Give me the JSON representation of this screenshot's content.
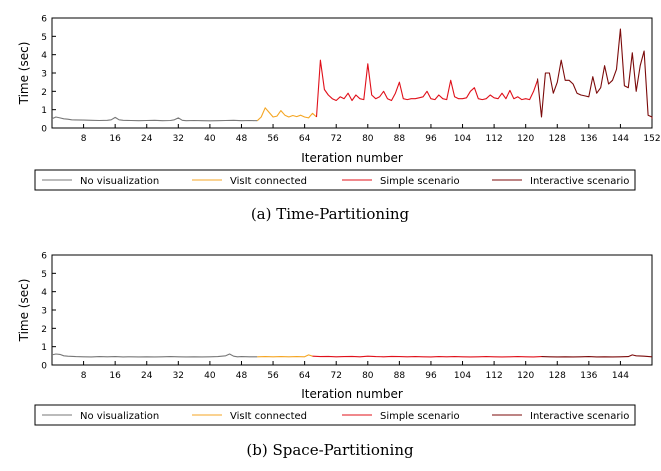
{
  "chart_data": [
    {
      "type": "line",
      "caption": "(a)  Time-Partitioning",
      "ylabel": "Time (sec)",
      "xlabel": "Iteration number",
      "xlim": [
        0,
        152
      ],
      "ylim": [
        0,
        6
      ],
      "xticks": [
        "8",
        "16",
        "24",
        "32",
        "40",
        "48",
        "56",
        "64",
        "72",
        "80",
        "88",
        "96",
        "104",
        "112",
        "120",
        "128",
        "136",
        "144",
        "152"
      ],
      "yticks": [
        "0",
        "1",
        "2",
        "3",
        "4",
        "5",
        "6"
      ],
      "legend": [
        "No visualization",
        "VisIt connected",
        "Simple scenario",
        "Interactive scenario"
      ],
      "series": [
        {
          "name": "No visualization",
          "color": "#777777",
          "x": [
            0,
            1,
            2,
            3,
            4,
            5,
            6,
            8,
            10,
            12,
            14,
            15,
            16,
            17,
            18,
            20,
            22,
            24,
            26,
            28,
            30,
            31,
            32,
            33,
            34,
            36,
            38,
            40,
            42,
            44,
            46,
            48,
            50,
            52
          ],
          "y": [
            0.5,
            0.6,
            0.55,
            0.5,
            0.48,
            0.45,
            0.44,
            0.43,
            0.42,
            0.41,
            0.42,
            0.45,
            0.58,
            0.45,
            0.42,
            0.41,
            0.4,
            0.41,
            0.42,
            0.4,
            0.41,
            0.45,
            0.55,
            0.42,
            0.4,
            0.41,
            0.4,
            0.39,
            0.4,
            0.41,
            0.42,
            0.4,
            0.41,
            0.4
          ]
        },
        {
          "name": "VisIt connected",
          "color": "#f5a623",
          "x": [
            52,
            53,
            54,
            55,
            56,
            57,
            58,
            59,
            60,
            61,
            62,
            63,
            64,
            65,
            66,
            67
          ],
          "y": [
            0.4,
            0.6,
            1.1,
            0.85,
            0.6,
            0.65,
            0.95,
            0.7,
            0.6,
            0.68,
            0.62,
            0.7,
            0.6,
            0.55,
            0.8,
            0.6
          ]
        },
        {
          "name": "Simple scenario",
          "color": "#e0101a",
          "x": [
            67,
            68,
            69,
            70,
            71,
            72,
            73,
            74,
            75,
            76,
            77,
            78,
            79,
            80,
            81,
            82,
            83,
            84,
            85,
            86,
            87,
            88,
            89,
            90,
            91,
            92,
            93,
            94,
            95,
            96,
            97,
            98,
            99,
            100,
            101,
            102,
            103,
            104,
            105,
            106,
            107,
            108,
            109,
            110,
            111,
            112,
            113,
            114,
            115,
            116,
            117,
            118,
            119,
            120,
            121,
            122,
            123
          ],
          "y": [
            0.6,
            3.7,
            2.1,
            1.8,
            1.6,
            1.5,
            1.7,
            1.6,
            1.9,
            1.5,
            1.8,
            1.6,
            1.55,
            3.5,
            1.8,
            1.6,
            1.7,
            2.0,
            1.6,
            1.5,
            1.9,
            2.5,
            1.6,
            1.55,
            1.6,
            1.6,
            1.65,
            1.7,
            2.0,
            1.6,
            1.55,
            1.8,
            1.6,
            1.55,
            2.6,
            1.7,
            1.6,
            1.6,
            1.65,
            2.0,
            2.2,
            1.6,
            1.55,
            1.6,
            1.8,
            1.65,
            1.6,
            1.9,
            1.6,
            2.05,
            1.6,
            1.7,
            1.55,
            1.6,
            1.55,
            2.0,
            2.6
          ]
        },
        {
          "name": "Interactive scenario",
          "color": "#7b0a0a",
          "x": [
            123,
            124,
            125,
            126,
            127,
            128,
            129,
            130,
            131,
            132,
            133,
            134,
            135,
            136,
            137,
            138,
            139,
            140,
            141,
            142,
            143,
            144,
            145,
            146,
            147,
            148,
            149,
            150,
            151,
            152,
            153,
            154
          ],
          "y": [
            2.7,
            0.6,
            3.0,
            3.0,
            1.9,
            2.5,
            3.7,
            2.6,
            2.6,
            2.4,
            1.9,
            1.8,
            1.75,
            1.7,
            2.8,
            1.9,
            2.2,
            3.4,
            2.4,
            2.6,
            3.2,
            5.4,
            2.3,
            2.2,
            4.1,
            2.0,
            3.4,
            4.2,
            0.7,
            0.6,
            0.55,
            0.5
          ]
        }
      ]
    },
    {
      "type": "line",
      "caption": "(b)  Space-Partitioning",
      "ylabel": "Time (sec)",
      "xlabel": "Iteration number",
      "xlim": [
        0,
        152
      ],
      "ylim": [
        0,
        6
      ],
      "xticks": [
        "8",
        "16",
        "24",
        "32",
        "40",
        "48",
        "56",
        "64",
        "72",
        "80",
        "88",
        "96",
        "104",
        "112",
        "120",
        "128",
        "136",
        "144"
      ],
      "yticks": [
        "0",
        "1",
        "2",
        "3",
        "4",
        "5",
        "6"
      ],
      "legend": [
        "No visualization",
        "VisIt connected",
        "Simple scenario",
        "Interactive scenario"
      ],
      "series": [
        {
          "name": "No visualization",
          "color": "#777777",
          "x": [
            0,
            1,
            2,
            3,
            4,
            6,
            8,
            10,
            12,
            14,
            16,
            18,
            20,
            22,
            24,
            26,
            28,
            30,
            32,
            34,
            36,
            38,
            40,
            42,
            44,
            45,
            46,
            47,
            48,
            50,
            52
          ],
          "y": [
            0.55,
            0.6,
            0.58,
            0.5,
            0.48,
            0.46,
            0.45,
            0.44,
            0.46,
            0.45,
            0.46,
            0.44,
            0.45,
            0.44,
            0.45,
            0.44,
            0.45,
            0.46,
            0.45,
            0.44,
            0.45,
            0.44,
            0.45,
            0.46,
            0.5,
            0.6,
            0.48,
            0.45,
            0.46,
            0.45,
            0.45
          ]
        },
        {
          "name": "VisIt connected",
          "color": "#f5a623",
          "x": [
            52,
            54,
            56,
            58,
            60,
            62,
            64,
            65,
            66
          ],
          "y": [
            0.45,
            0.46,
            0.45,
            0.46,
            0.45,
            0.46,
            0.45,
            0.55,
            0.48
          ]
        },
        {
          "name": "Simple scenario",
          "color": "#e0101a",
          "x": [
            66,
            68,
            70,
            72,
            74,
            76,
            78,
            80,
            82,
            84,
            86,
            88,
            90,
            92,
            94,
            96,
            98,
            100,
            102,
            104,
            106,
            108,
            110,
            112,
            114,
            116,
            118,
            120,
            122,
            124
          ],
          "y": [
            0.48,
            0.46,
            0.47,
            0.45,
            0.46,
            0.47,
            0.45,
            0.48,
            0.46,
            0.45,
            0.47,
            0.46,
            0.45,
            0.46,
            0.45,
            0.44,
            0.46,
            0.45,
            0.46,
            0.45,
            0.44,
            0.45,
            0.46,
            0.45,
            0.44,
            0.45,
            0.46,
            0.45,
            0.44,
            0.46
          ]
        },
        {
          "name": "Interactive scenario",
          "color": "#7b0a0a",
          "x": [
            124,
            126,
            128,
            130,
            132,
            134,
            136,
            138,
            140,
            142,
            144,
            146,
            147,
            148,
            150,
            152
          ],
          "y": [
            0.46,
            0.45,
            0.44,
            0.45,
            0.44,
            0.45,
            0.46,
            0.44,
            0.45,
            0.44,
            0.45,
            0.46,
            0.55,
            0.5,
            0.48,
            0.45
          ]
        }
      ]
    }
  ]
}
